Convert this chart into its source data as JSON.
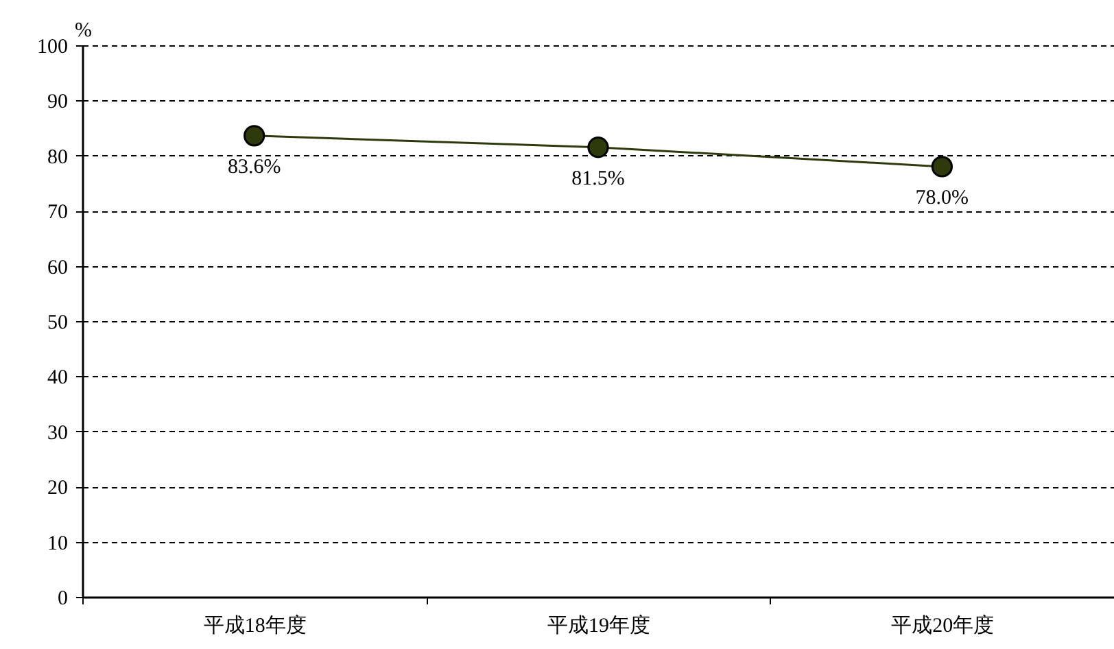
{
  "chart_data": {
    "type": "line",
    "ylabel": "%",
    "categories": [
      "平成18年度",
      "平成19年度",
      "平成20年度"
    ],
    "series": [
      {
        "color": "#2e3a0c",
        "values": [
          83.6,
          81.5,
          78.0
        ],
        "value_labels": [
          "83.6%",
          "81.5%",
          "78.0%"
        ]
      }
    ],
    "ylim": [
      0,
      100
    ],
    "yticks": [
      0,
      10,
      20,
      30,
      40,
      50,
      60,
      70,
      80,
      90,
      100
    ],
    "grid": "y",
    "marker": "circle",
    "line_style": "solid",
    "legend": false
  }
}
